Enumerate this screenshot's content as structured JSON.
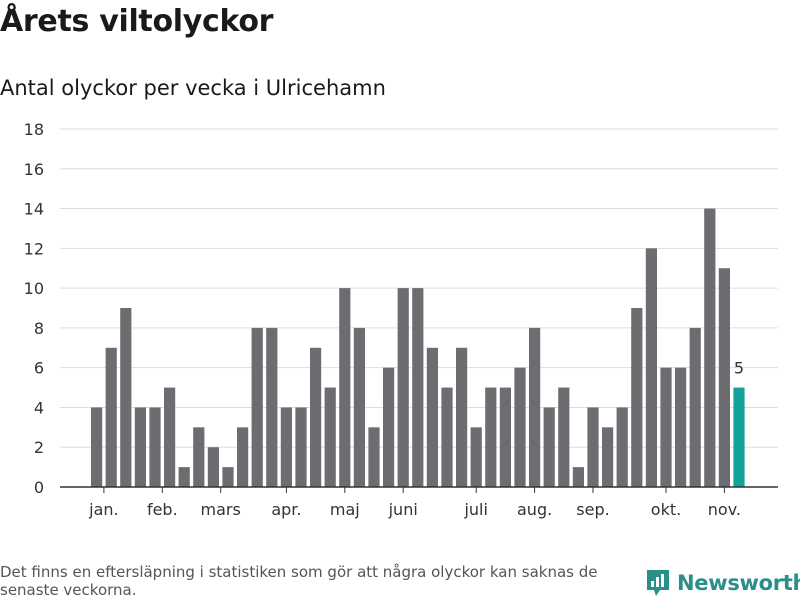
{
  "title": "Årets viltolyckor",
  "subtitle": "Antal olyckor per vecka i Ulricehamn",
  "footnote": "Det finns en eftersläpning i statistiken som gör att några olyckor kan saknas de senaste veckorna.",
  "brand": {
    "name": "Newsworthy",
    "icon": "newsworthy-logo-icon",
    "color": "#2a8f88"
  },
  "colors": {
    "bar": "#6d6c71",
    "highlight": "#14a39a",
    "grid": "#dddddd",
    "axis": "#333333"
  },
  "chart_data": {
    "type": "bar",
    "title": "Antal olyckor per vecka i Ulricehamn",
    "xlabel": "",
    "ylabel": "",
    "ylim": [
      0,
      18
    ],
    "yticks": [
      0,
      2,
      4,
      6,
      8,
      10,
      12,
      14,
      16,
      18
    ],
    "grid": true,
    "values": [
      4,
      7,
      9,
      4,
      4,
      5,
      1,
      3,
      2,
      1,
      3,
      8,
      8,
      4,
      4,
      7,
      5,
      10,
      8,
      3,
      6,
      10,
      10,
      7,
      5,
      7,
      3,
      5,
      5,
      6,
      8,
      4,
      5,
      1,
      4,
      3,
      4,
      9,
      12,
      6,
      6,
      8,
      14,
      11,
      5
    ],
    "highlight_index": 44,
    "highlight_label": "5",
    "month_labels": [
      {
        "label": "jan.",
        "week_index": 0.5
      },
      {
        "label": "feb.",
        "week_index": 4.5
      },
      {
        "label": "mars",
        "week_index": 8.5
      },
      {
        "label": "apr.",
        "week_index": 13.0
      },
      {
        "label": "maj",
        "week_index": 17.0
      },
      {
        "label": "juni",
        "week_index": 21.0
      },
      {
        "label": "juli",
        "week_index": 26.0
      },
      {
        "label": "aug.",
        "week_index": 30.0
      },
      {
        "label": "sep.",
        "week_index": 34.0
      },
      {
        "label": "okt.",
        "week_index": 39.0
      },
      {
        "label": "nov.",
        "week_index": 43.0
      }
    ]
  }
}
